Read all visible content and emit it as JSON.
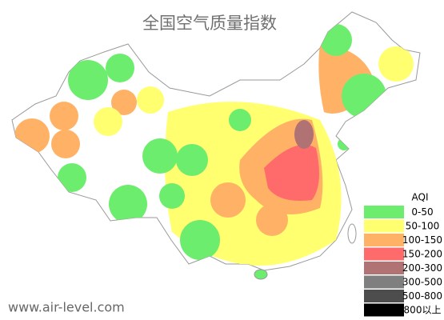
{
  "title": "全国空气质量指数",
  "legend": {
    "title": "AQI",
    "items": [
      {
        "label": "0-50",
        "color": "#6ded6d"
      },
      {
        "label": "50-100",
        "color": "#ffff70"
      },
      {
        "label": "100-150",
        "color": "#ffb266"
      },
      {
        "label": "150-200",
        "color": "#ff6b6b"
      },
      {
        "label": "200-300",
        "color": "#b07272"
      },
      {
        "label": "300-500",
        "color": "#7f7f7f"
      },
      {
        "label": "500-800",
        "color": "#4d4d4d"
      },
      {
        "label": "800以上",
        "color": "#000000"
      }
    ]
  },
  "watermark": "www.air-level.com"
}
